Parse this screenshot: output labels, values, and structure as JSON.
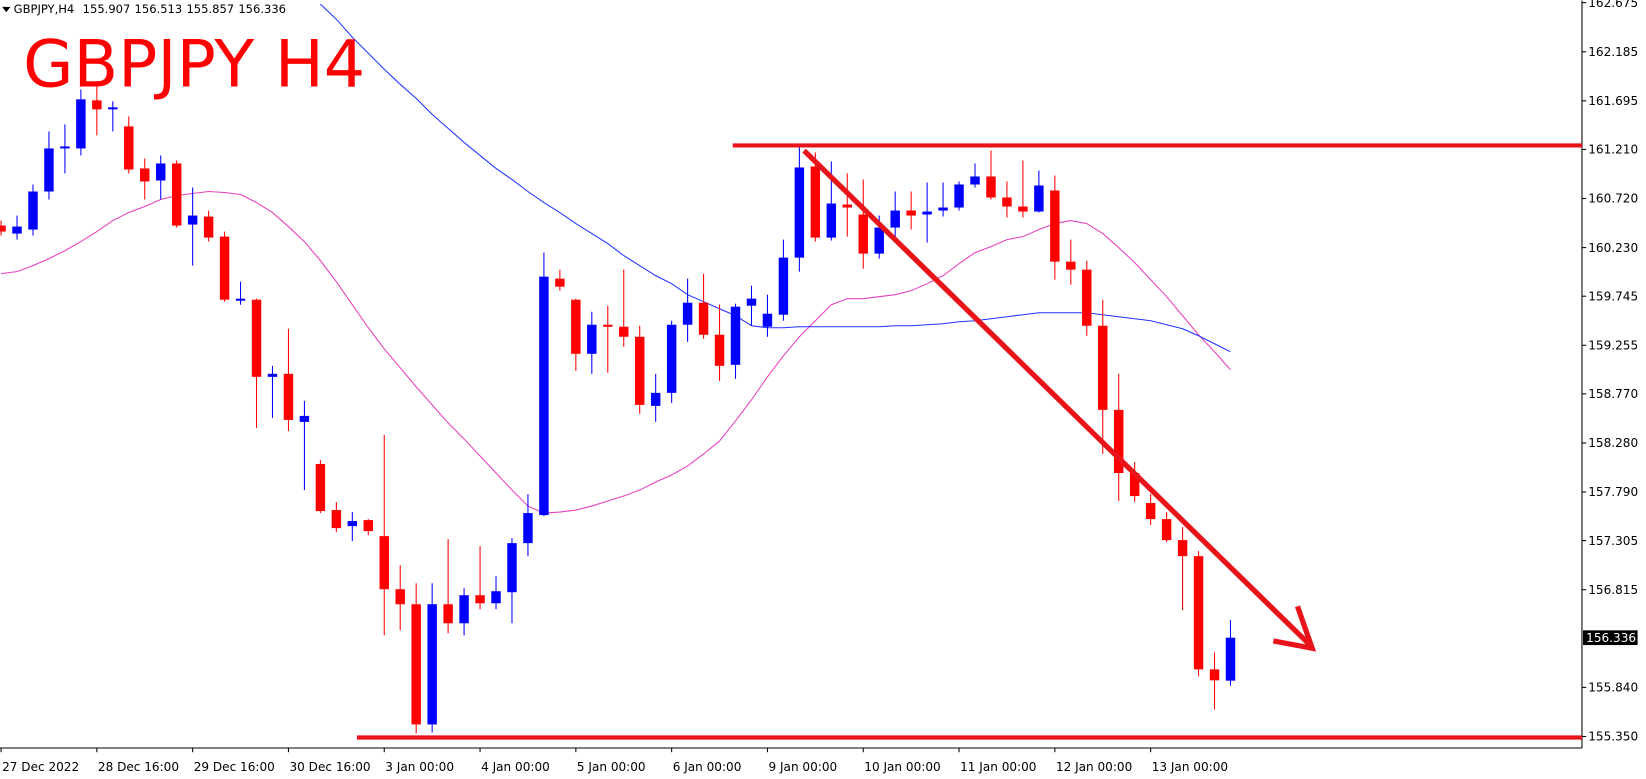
{
  "chart_data": {
    "type": "candlestick",
    "symbol": "GBPJPY,H4",
    "title": "GBPJPY H4",
    "up_color": "#0000ff",
    "down_color": "#ff0000",
    "categories": [
      "27 Dec 2022",
      null,
      null,
      null,
      null,
      null,
      "28 Dec 16:00",
      null,
      null,
      null,
      null,
      null,
      "29 Dec 16:00",
      null,
      null,
      null,
      null,
      null,
      "30 Dec 16:00",
      null,
      null,
      null,
      null,
      null,
      "3 Jan 00:00",
      null,
      null,
      null,
      null,
      null,
      "4 Jan 00:00",
      null,
      null,
      null,
      null,
      null,
      "5 Jan 00:00",
      null,
      null,
      null,
      null,
      null,
      "6 Jan 00:00",
      null,
      null,
      null,
      null,
      null,
      "9 Jan 00:00",
      null,
      null,
      null,
      null,
      null,
      "10 Jan 00:00",
      null,
      null,
      null,
      null,
      null,
      "11 Jan 00:00",
      null,
      null,
      null,
      null,
      null,
      "12 Jan 00:00",
      null,
      null,
      null,
      null,
      null,
      "13 Jan 00:00",
      null,
      null,
      null,
      null,
      null
    ],
    "open": [
      160.45,
      160.37,
      160.41,
      160.79,
      161.22,
      161.22,
      161.7,
      161.61,
      161.44,
      161.02,
      160.9,
      161.07,
      160.46,
      160.54,
      160.34,
      159.7,
      159.71,
      158.94,
      158.97,
      158.49,
      158.07,
      157.61,
      157.45,
      157.51,
      157.35,
      156.82,
      156.67,
      155.47,
      156.67,
      156.48,
      156.76,
      156.68,
      156.79,
      157.28,
      157.56,
      159.92,
      159.71,
      159.17,
      159.46,
      159.44,
      159.34,
      158.65,
      158.78,
      159.46,
      159.68,
      159.36,
      159.06,
      159.65,
      159.44,
      159.56,
      160.13,
      161.04,
      160.33,
      160.66,
      160.56,
      160.17,
      160.43,
      160.6,
      160.56,
      160.6,
      160.63,
      160.86,
      160.94,
      160.73,
      160.64,
      160.59,
      160.8,
      160.09,
      160.01,
      159.45,
      158.61,
      157.98,
      157.68,
      157.52,
      157.31,
      157.15,
      156.02,
      155.907
    ],
    "high": [
      160.5,
      160.55,
      160.86,
      161.39,
      161.46,
      161.81,
      161.86,
      161.69,
      161.54,
      161.12,
      161.15,
      161.1,
      160.83,
      160.6,
      160.39,
      159.89,
      159.72,
      159.05,
      159.42,
      158.7,
      158.11,
      157.69,
      157.59,
      157.52,
      158.36,
      157.06,
      156.88,
      156.88,
      157.32,
      156.83,
      157.25,
      156.95,
      157.33,
      157.77,
      160.18,
      160.01,
      159.72,
      159.59,
      159.65,
      160.01,
      159.45,
      158.97,
      159.5,
      159.92,
      159.97,
      159.66,
      159.67,
      159.85,
      159.76,
      160.31,
      161.23,
      161.18,
      161.09,
      160.97,
      160.91,
      160.55,
      160.79,
      160.79,
      160.88,
      160.88,
      160.89,
      161.07,
      161.2,
      160.89,
      161.1,
      161.0,
      160.95,
      160.31,
      160.1,
      159.71,
      158.97,
      158.09,
      157.77,
      157.59,
      157.44,
      157.2,
      156.19,
      156.513
    ],
    "low": [
      160.35,
      160.31,
      160.35,
      160.71,
      160.97,
      161.15,
      161.35,
      161.39,
      160.97,
      160.71,
      160.71,
      160.43,
      160.05,
      160.29,
      159.69,
      159.66,
      158.43,
      158.53,
      158.4,
      157.81,
      157.58,
      157.39,
      157.3,
      157.36,
      156.36,
      156.41,
      155.38,
      155.39,
      156.38,
      156.36,
      156.62,
      156.62,
      156.48,
      157.15,
      157.55,
      159.8,
      159.0,
      158.97,
      158.98,
      159.24,
      158.57,
      158.49,
      158.68,
      159.29,
      159.32,
      158.9,
      158.92,
      159.45,
      159.34,
      159.5,
      159.99,
      160.29,
      160.3,
      160.34,
      160.02,
      160.12,
      160.28,
      160.41,
      160.28,
      160.54,
      160.6,
      160.83,
      160.71,
      160.53,
      160.53,
      160.58,
      159.91,
      159.86,
      159.35,
      158.17,
      157.7,
      157.69,
      157.46,
      157.29,
      156.61,
      155.95,
      155.62,
      155.857
    ],
    "close": [
      160.39,
      160.44,
      160.79,
      161.22,
      161.24,
      161.71,
      161.61,
      161.63,
      161.01,
      160.89,
      161.07,
      160.45,
      160.55,
      160.33,
      159.71,
      159.72,
      158.94,
      158.97,
      158.51,
      158.55,
      157.6,
      157.43,
      157.5,
      157.4,
      156.82,
      156.67,
      155.47,
      156.67,
      156.48,
      156.76,
      156.68,
      156.8,
      157.28,
      157.58,
      159.94,
      159.84,
      159.17,
      159.46,
      159.44,
      159.34,
      158.66,
      158.78,
      159.46,
      159.68,
      159.36,
      159.05,
      159.64,
      159.72,
      159.57,
      160.13,
      161.03,
      160.33,
      160.67,
      160.63,
      160.17,
      160.43,
      160.6,
      160.55,
      160.59,
      160.63,
      160.86,
      160.94,
      160.73,
      160.64,
      160.59,
      160.85,
      160.09,
      160.01,
      159.45,
      158.61,
      157.98,
      157.75,
      157.52,
      157.31,
      157.15,
      156.02,
      155.91,
      156.336
    ],
    "lines": [
      {
        "color": "#e83fc0",
        "values": [
          159.97,
          159.99,
          160.05,
          160.12,
          160.2,
          160.29,
          160.39,
          160.5,
          160.58,
          160.64,
          160.71,
          160.75,
          160.77,
          160.79,
          160.78,
          160.76,
          160.68,
          160.58,
          160.44,
          160.29,
          160.1,
          159.89,
          159.66,
          159.43,
          159.22,
          159.03,
          158.84,
          158.66,
          158.48,
          158.32,
          158.15,
          157.98,
          157.81,
          157.65,
          157.58,
          157.59,
          157.61,
          157.65,
          157.7,
          157.75,
          157.81,
          157.89,
          157.96,
          158.05,
          158.17,
          158.3,
          158.5,
          158.71,
          158.94,
          159.15,
          159.34,
          159.5,
          159.66,
          159.72,
          159.72,
          159.74,
          159.76,
          159.8,
          159.87,
          159.95,
          160.07,
          160.18,
          160.24,
          160.31,
          160.34,
          160.41,
          160.47,
          160.5,
          160.47,
          160.37,
          160.23,
          160.08,
          159.91,
          159.74,
          159.55,
          159.36,
          159.19,
          159.01
        ]
      },
      {
        "color": "#2233ff",
        "values": [
          null,
          null,
          null,
          null,
          null,
          null,
          null,
          null,
          null,
          null,
          null,
          null,
          null,
          null,
          null,
          null,
          null,
          null,
          null,
          null,
          162.66,
          162.51,
          162.33,
          162.17,
          162.01,
          161.86,
          161.72,
          161.56,
          161.42,
          161.28,
          161.15,
          161.02,
          160.91,
          160.79,
          160.68,
          160.58,
          160.47,
          160.37,
          160.27,
          160.15,
          160.05,
          159.95,
          159.87,
          159.76,
          159.69,
          159.62,
          159.55,
          159.45,
          159.43,
          159.43,
          159.44,
          159.44,
          159.44,
          159.44,
          159.44,
          159.44,
          159.45,
          159.45,
          159.46,
          159.47,
          159.49,
          159.5,
          159.52,
          159.54,
          159.56,
          159.58,
          159.58,
          159.58,
          159.58,
          159.56,
          159.54,
          159.52,
          159.5,
          159.46,
          159.42,
          159.35,
          159.27,
          159.19
        ]
      }
    ],
    "levels": [
      161.25,
      155.34
    ],
    "level_color": "#e8141a",
    "ylim": [
      155.235,
      162.696
    ],
    "yticks": [
      162.675,
      162.185,
      161.695,
      {
        "value": 161.21,
        "label": "161.210"
      },
      {
        "value": 160.72,
        "label": "160.720"
      },
      {
        "value": 160.23,
        "label": "160.230"
      },
      159.745,
      159.255,
      {
        "value": 158.77,
        "label": "158.770"
      },
      {
        "value": 158.28,
        "label": "158.280"
      },
      {
        "value": 157.79,
        "label": "157.790"
      },
      157.305,
      156.815,
      {
        "value": 155.84,
        "label": "155.840"
      },
      {
        "value": 155.35,
        "label": "155.350"
      }
    ]
  }
}
